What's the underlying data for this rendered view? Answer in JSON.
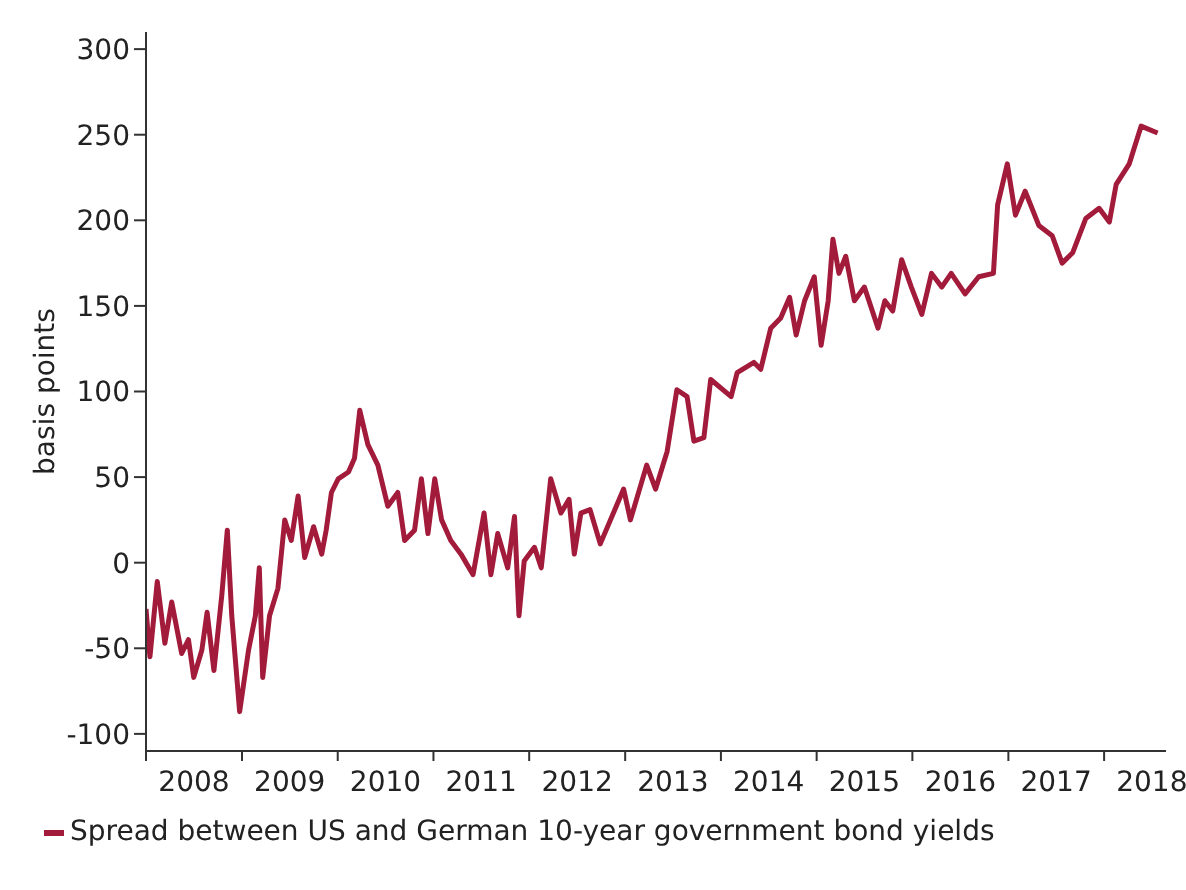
{
  "chart_data": {
    "type": "line",
    "ylabel": "basis points",
    "legend": "bottom",
    "x": [
      "2008-01-01",
      "2008-01-16",
      "2008-02-13",
      "2008-03-13",
      "2008-04-08",
      "2008-05-16",
      "2008-06-11",
      "2008-07-01",
      "2008-08-01",
      "2008-08-21",
      "2008-09-16",
      "2008-10-16",
      "2008-11-06",
      "2008-11-23",
      "2008-12-23",
      "2009-01-26",
      "2009-02-21",
      "2009-03-08",
      "2009-03-21",
      "2009-04-16",
      "2009-05-18",
      "2009-06-13",
      "2009-07-08",
      "2009-08-03",
      "2009-08-28",
      "2009-10-01",
      "2009-11-01",
      "2009-11-18",
      "2009-12-08",
      "2010-01-03",
      "2010-02-11",
      "2010-03-06",
      "2010-03-26",
      "2010-04-26",
      "2010-06-03",
      "2010-07-11",
      "2010-08-18",
      "2010-09-13",
      "2010-10-21",
      "2010-11-16",
      "2010-12-11",
      "2011-01-06",
      "2011-02-01",
      "2011-03-08",
      "2011-04-16",
      "2011-06-01",
      "2011-07-13",
      "2011-08-08",
      "2011-09-03",
      "2011-10-11",
      "2011-11-06",
      "2011-11-23",
      "2011-12-13",
      "2012-01-21",
      "2012-02-16",
      "2012-03-23",
      "2012-05-01",
      "2012-06-01",
      "2012-06-21",
      "2012-07-16",
      "2012-08-20",
      "2012-09-28",
      "2012-12-26",
      "2013-01-21",
      "2013-03-24",
      "2013-04-27",
      "2013-06-10",
      "2013-07-17",
      "2013-08-25",
      "2013-09-20",
      "2013-10-28",
      "2013-11-23",
      "2014-02-09",
      "2014-03-04",
      "2014-05-07",
      "2014-06-02",
      "2014-07-10",
      "2014-08-17",
      "2014-09-20",
      "2014-10-15",
      "2014-11-16",
      "2014-12-23",
      "2015-01-18",
      "2015-02-14",
      "2015-03-04",
      "2015-03-27",
      "2015-04-22",
      "2015-05-25",
      "2015-07-02",
      "2015-08-23",
      "2015-09-18",
      "2015-10-18",
      "2015-11-21",
      "2015-12-28",
      "2016-02-06",
      "2016-03-14",
      "2016-04-22",
      "2016-05-28",
      "2016-07-20",
      "2016-09-10",
      "2016-11-05",
      "2016-11-21",
      "2016-12-28",
      "2017-01-28",
      "2017-03-06",
      "2017-04-27",
      "2017-06-17",
      "2017-07-25",
      "2017-09-03",
      "2017-10-23",
      "2017-12-13",
      "2018-01-21",
      "2018-02-16",
      "2018-04-07",
      "2018-05-22",
      "2018-07-24"
    ],
    "series": [
      {
        "name": "Spread between US and German 10-year government bond yields",
        "color": "#a31b3b",
        "values": [
          -27,
          -55,
          -11,
          -47,
          -23,
          -53,
          -45,
          -67,
          -51,
          -29,
          -63,
          -19,
          19,
          -31,
          -87,
          -51,
          -31,
          -3,
          -67,
          -31,
          -15,
          25,
          13,
          39,
          3,
          21,
          5,
          19,
          41,
          49,
          53,
          61,
          89,
          69,
          57,
          33,
          41,
          13,
          19,
          49,
          17,
          49,
          25,
          13,
          5,
          -7,
          29,
          -7,
          17,
          -3,
          27,
          -31,
          1,
          9,
          -3,
          49,
          29,
          37,
          5,
          29,
          31,
          11,
          43,
          25,
          57,
          43,
          65,
          101,
          97,
          71,
          73,
          107,
          97,
          111,
          117,
          113,
          137,
          143,
          155,
          133,
          153,
          167,
          127,
          153,
          189,
          169,
          179,
          153,
          161,
          137,
          153,
          147,
          177,
          161,
          145,
          169,
          161,
          169,
          157,
          167,
          169,
          209,
          233,
          203,
          217,
          197,
          191,
          175,
          181,
          201,
          207,
          199,
          221,
          233,
          255,
          251
        ]
      }
    ],
    "xlim": [
      "2008-01-01",
      "2018-08-25"
    ],
    "xticks": [
      {
        "value": "2008-01-01",
        "label": null
      },
      {
        "value": "2008-07-02",
        "label": "2008"
      },
      {
        "value": "2009-01-01",
        "label": null
      },
      {
        "value": "2009-07-02",
        "label": "2009"
      },
      {
        "value": "2010-01-01",
        "label": null
      },
      {
        "value": "2010-07-02",
        "label": "2010"
      },
      {
        "value": "2011-01-01",
        "label": null
      },
      {
        "value": "2011-07-02",
        "label": "2011"
      },
      {
        "value": "2012-01-01",
        "label": null
      },
      {
        "value": "2012-07-02",
        "label": "2012"
      },
      {
        "value": "2013-01-01",
        "label": null
      },
      {
        "value": "2013-07-02",
        "label": "2013"
      },
      {
        "value": "2014-01-01",
        "label": null
      },
      {
        "value": "2014-07-02",
        "label": "2014"
      },
      {
        "value": "2015-01-01",
        "label": null
      },
      {
        "value": "2015-07-02",
        "label": "2015"
      },
      {
        "value": "2016-01-01",
        "label": null
      },
      {
        "value": "2016-07-02",
        "label": "2016"
      },
      {
        "value": "2017-01-01",
        "label": null
      },
      {
        "value": "2017-07-02",
        "label": "2017"
      },
      {
        "value": "2018-01-01",
        "label": null
      },
      {
        "value": "2018-07-02",
        "label": "2018"
      }
    ],
    "ylim": [
      -110,
      310
    ],
    "yticks": [
      -100,
      -50,
      0,
      50,
      100,
      150,
      200,
      250,
      300
    ]
  }
}
